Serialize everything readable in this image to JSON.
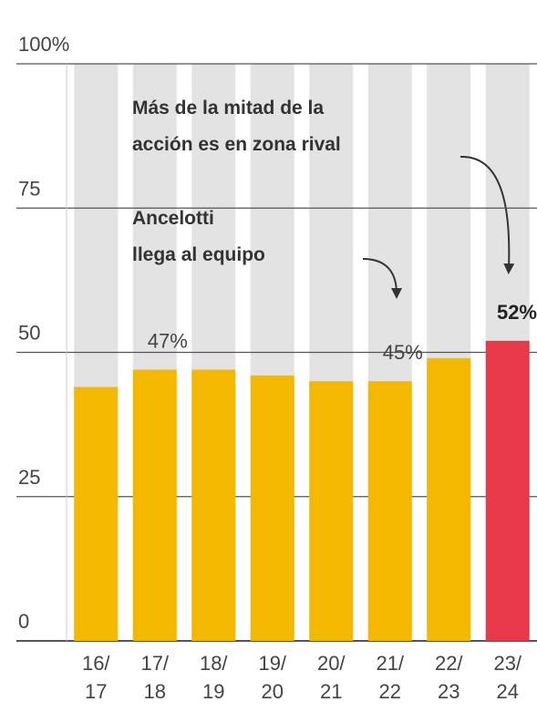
{
  "chart_data": {
    "type": "bar",
    "categories": [
      "16/17",
      "17/18",
      "18/19",
      "19/20",
      "20/21",
      "21/22",
      "22/23",
      "23/24"
    ],
    "values": [
      44,
      47,
      47,
      46,
      45,
      45,
      49,
      52
    ],
    "value_labels": [
      null,
      "47%",
      null,
      null,
      null,
      "45%",
      null,
      "52%"
    ],
    "colors": [
      "#f5b800",
      "#f5b800",
      "#f5b800",
      "#f5b800",
      "#f5b800",
      "#f5b800",
      "#f5b800",
      "#e8394a"
    ],
    "background_color": "#e3e3e3",
    "ylim": [
      0,
      100
    ],
    "yticks": [
      0,
      25,
      50,
      75,
      {
        "value": 100,
        "label": "100%"
      }
    ],
    "grid": true,
    "annotations": [
      {
        "lines": [
          "Más de la mitad de la",
          "acción es en zona rival"
        ]
      },
      {
        "lines": [
          "Ancelotti",
          "llega al equipo"
        ]
      }
    ]
  }
}
